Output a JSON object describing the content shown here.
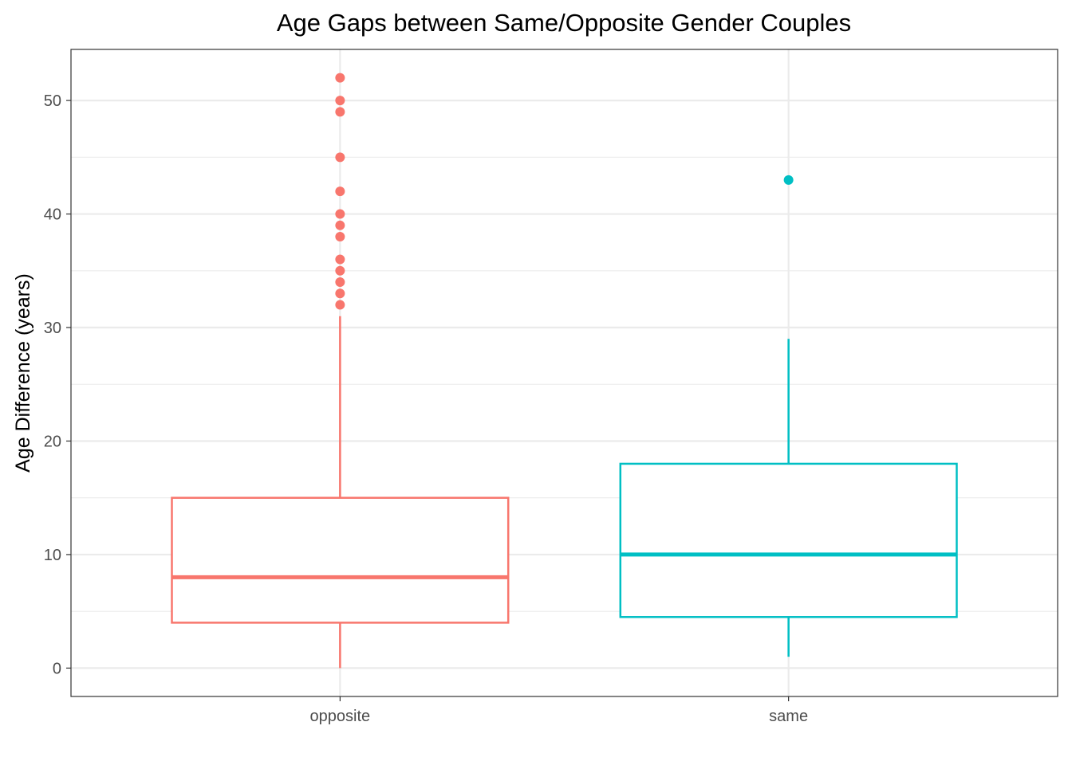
{
  "chart_data": {
    "type": "boxplot",
    "title": "Age Gaps between Same/Opposite Gender Couples",
    "xlabel": "",
    "ylabel": "Age Difference (years)",
    "ylim": [
      -2.5,
      54.5
    ],
    "y_ticks": [
      0,
      10,
      20,
      30,
      40,
      50
    ],
    "y_minor_ticks": [
      5,
      15,
      25,
      35,
      45
    ],
    "grid": true,
    "legend": "none",
    "categories": [
      "opposite",
      "same"
    ],
    "series": [
      {
        "category": "opposite",
        "color": "#F8766D",
        "whisker_low": 0,
        "q1": 4,
        "median": 8,
        "q3": 15,
        "whisker_high": 31,
        "outliers": [
          52,
          50,
          49,
          45,
          42,
          40,
          39,
          38,
          36,
          35,
          34,
          33,
          32
        ]
      },
      {
        "category": "same",
        "color": "#00BFC4",
        "whisker_low": 1,
        "q1": 4.5,
        "median": 10,
        "q3": 18,
        "whisker_high": 29,
        "outliers": [
          43
        ]
      }
    ]
  }
}
